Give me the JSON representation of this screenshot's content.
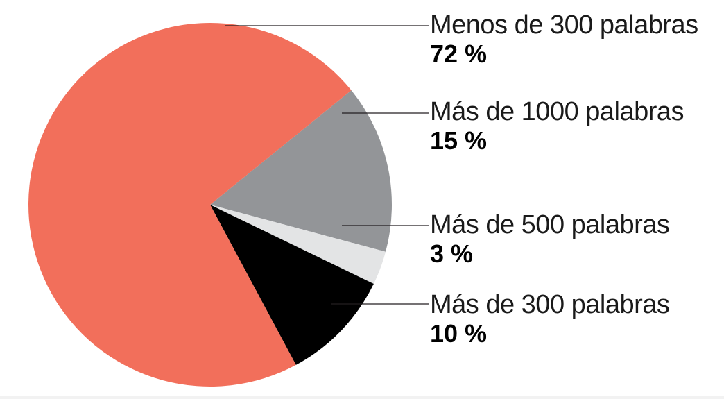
{
  "chart_data": {
    "type": "pie",
    "title": "",
    "slices": [
      {
        "label": "Menos de 300 palabras",
        "value": 72,
        "value_label": "72 %",
        "color": "#f26f5b"
      },
      {
        "label": "Más de 1000 palabras",
        "value": 15,
        "value_label": "15 %",
        "color": "#939598"
      },
      {
        "label": "Más de 500 palabras",
        "value": 3,
        "value_label": "3 %",
        "color": "#e3e4e5"
      },
      {
        "label": "Más de 300 palabras",
        "value": 10,
        "value_label": "10 %",
        "color": "#000000"
      }
    ],
    "legend": "right, callout lines"
  }
}
